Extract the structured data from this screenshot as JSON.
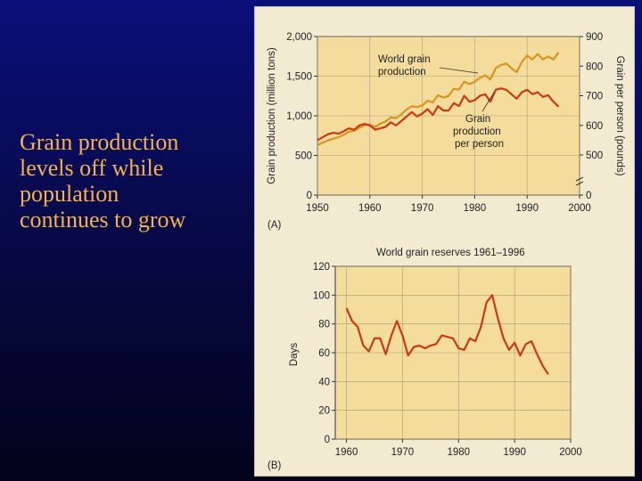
{
  "caption": {
    "lines": [
      "Grain production",
      "levels off while",
      "population",
      "continues to grow"
    ],
    "color": "#f6b24a"
  },
  "chart_data": [
    {
      "type": "line",
      "panel_label": "(A)",
      "title": "",
      "xlabel": "",
      "ylabel": "Grain production (million tons)",
      "y2label": "Grain per person (pounds)",
      "xlim": [
        1950,
        2000
      ],
      "ylim": [
        0,
        2000
      ],
      "y2lim": [
        0,
        900
      ],
      "x_ticks": [
        "1950",
        "1960",
        "1970",
        "1980",
        "1990",
        "2000"
      ],
      "y_ticks": [
        "0",
        "500",
        "1,000",
        "1,500",
        "2,000"
      ],
      "y2_ticks": [
        "0",
        "500",
        "600",
        "700",
        "800",
        "900"
      ],
      "axis_break": "right axis jumps from 0 to 500",
      "grid": true,
      "series": [
        {
          "name": "World grain production",
          "axis": "left",
          "color": "#d8951e",
          "x": [
            1950,
            1951,
            1952,
            1953,
            1954,
            1955,
            1956,
            1957,
            1958,
            1959,
            1960,
            1961,
            1962,
            1963,
            1964,
            1965,
            1966,
            1967,
            1968,
            1969,
            1970,
            1971,
            1972,
            1973,
            1974,
            1975,
            1976,
            1977,
            1978,
            1979,
            1980,
            1981,
            1982,
            1983,
            1984,
            1985,
            1986,
            1987,
            1988,
            1989,
            1990,
            1991,
            1992,
            1993,
            1994,
            1995,
            1996
          ],
          "values": [
            630,
            660,
            690,
            710,
            730,
            760,
            800,
            810,
            850,
            880,
            890,
            860,
            900,
            930,
            980,
            970,
            1020,
            1080,
            1120,
            1110,
            1130,
            1190,
            1170,
            1260,
            1230,
            1250,
            1340,
            1330,
            1430,
            1400,
            1430,
            1480,
            1510,
            1460,
            1600,
            1640,
            1660,
            1600,
            1550,
            1680,
            1760,
            1710,
            1780,
            1710,
            1750,
            1710,
            1800
          ]
        },
        {
          "name": "Grain production per person",
          "axis": "right",
          "color": "#c83a12",
          "x": [
            1950,
            1951,
            1952,
            1953,
            1954,
            1955,
            1956,
            1957,
            1958,
            1959,
            1960,
            1961,
            1962,
            1963,
            1964,
            1965,
            1966,
            1967,
            1968,
            1969,
            1970,
            1971,
            1972,
            1973,
            1974,
            1975,
            1976,
            1977,
            1978,
            1979,
            1980,
            1981,
            1982,
            1983,
            1984,
            1985,
            1986,
            1987,
            1988,
            1989,
            1990,
            1991,
            1992,
            1993,
            1994,
            1995,
            1996
          ],
          "values": [
            550,
            560,
            570,
            575,
            572,
            580,
            590,
            585,
            600,
            605,
            600,
            585,
            590,
            595,
            610,
            600,
            615,
            630,
            645,
            630,
            640,
            655,
            635,
            665,
            650,
            650,
            675,
            665,
            700,
            680,
            685,
            700,
            705,
            680,
            720,
            725,
            720,
            705,
            690,
            712,
            720,
            705,
            712,
            696,
            702,
            680,
            663
          ]
        }
      ],
      "annotations": [
        "World grain production",
        "Grain production per person"
      ]
    },
    {
      "type": "line",
      "panel_label": "(B)",
      "title": "World grain reserves 1961–1996",
      "xlabel": "",
      "ylabel": "Days",
      "xlim": [
        1958,
        2000
      ],
      "ylim": [
        0,
        120
      ],
      "x_ticks": [
        "1960",
        "1970",
        "1980",
        "1990",
        "2000"
      ],
      "y_ticks": [
        "0",
        "20",
        "40",
        "60",
        "80",
        "100",
        "120"
      ],
      "grid": true,
      "series": [
        {
          "name": "World grain reserves",
          "color": "#c83a12",
          "x": [
            1960,
            1961,
            1962,
            1963,
            1964,
            1965,
            1966,
            1967,
            1968,
            1969,
            1970,
            1971,
            1972,
            1973,
            1974,
            1975,
            1976,
            1977,
            1978,
            1979,
            1980,
            1981,
            1982,
            1983,
            1984,
            1985,
            1986,
            1987,
            1988,
            1989,
            1990,
            1991,
            1992,
            1993,
            1994,
            1995,
            1996
          ],
          "values": [
            91,
            82,
            78,
            65,
            61,
            70,
            70,
            59,
            72,
            82,
            72,
            58,
            64,
            65,
            63,
            65,
            66,
            72,
            71,
            70,
            63,
            62,
            70,
            68,
            78,
            95,
            100,
            84,
            70,
            62,
            67,
            58,
            66,
            68,
            59,
            51,
            45
          ]
        }
      ],
      "annotations": []
    }
  ]
}
